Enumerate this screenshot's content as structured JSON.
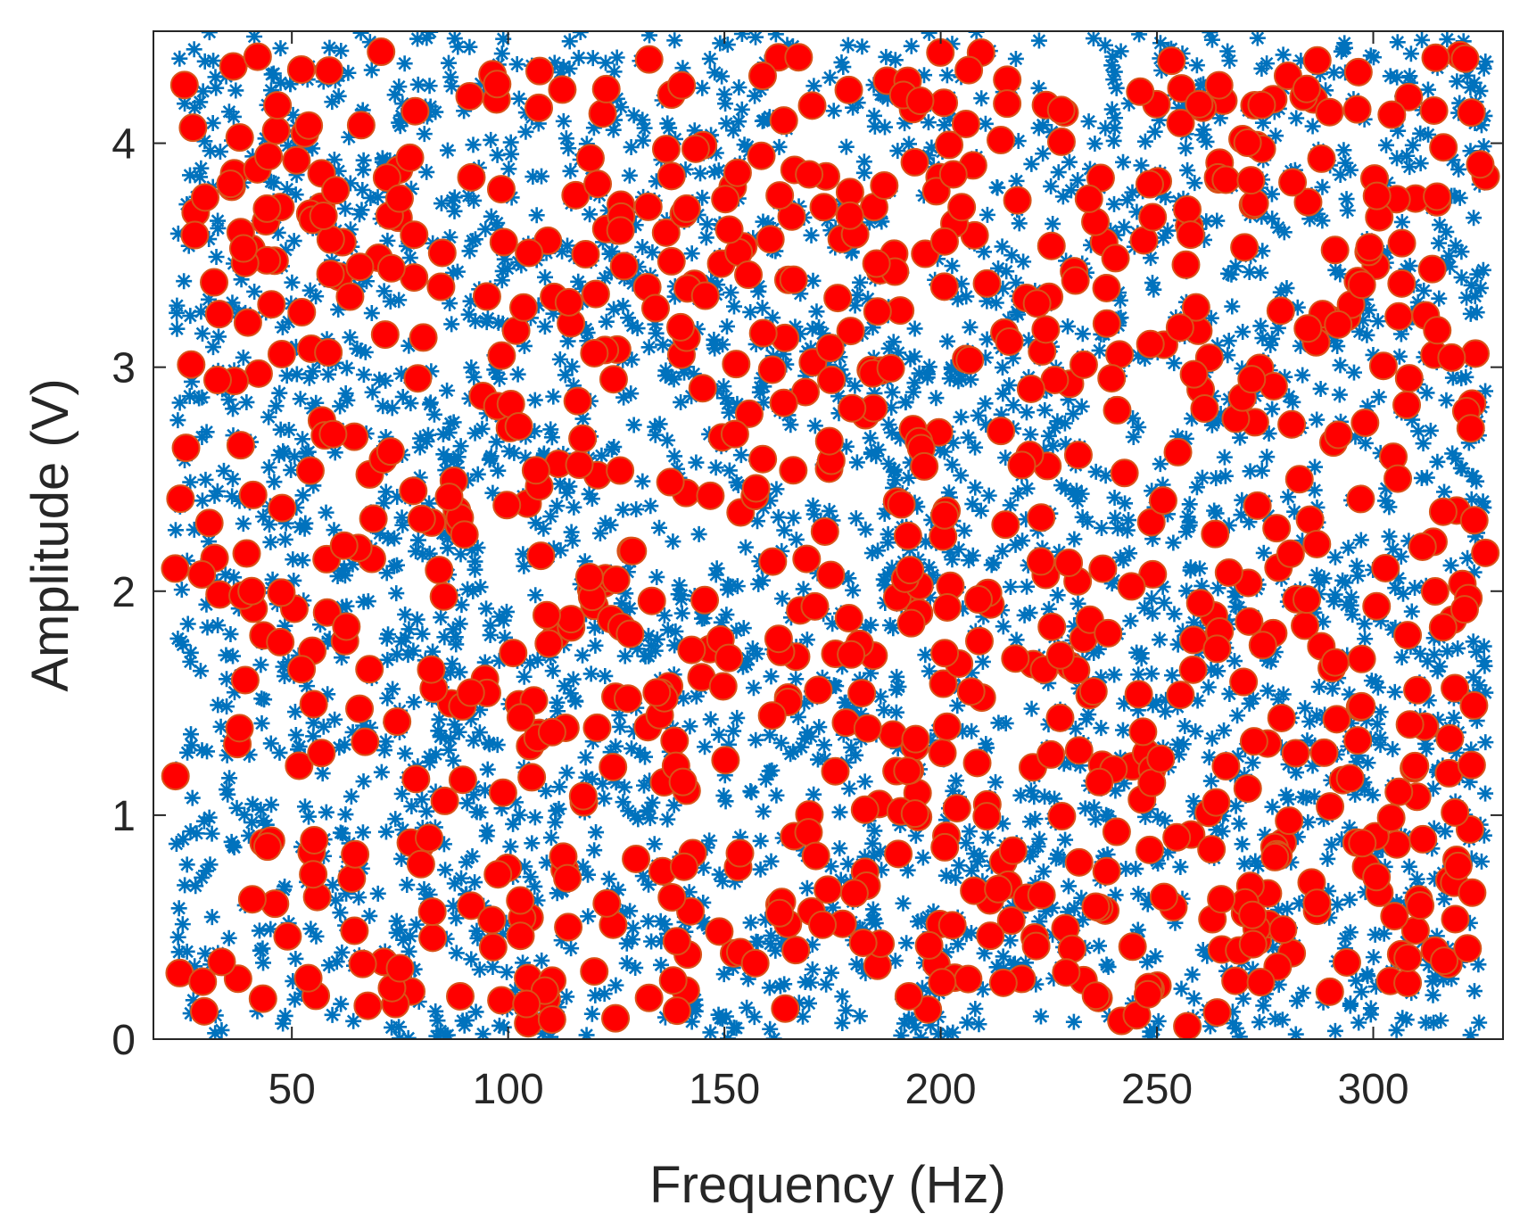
{
  "chart_data": {
    "type": "scatter",
    "title": "",
    "xlabel": "Frequency (Hz)",
    "ylabel": "Amplitude (V)",
    "xlim": [
      18,
      330
    ],
    "ylim": [
      0,
      4.5
    ],
    "xticks": [
      50,
      100,
      150,
      200,
      250,
      300
    ],
    "yticks": [
      0,
      1,
      2,
      3,
      4
    ],
    "grid": false,
    "box": true,
    "legend": null,
    "series": [
      {
        "marker": "asterisk",
        "color": "#0072BD",
        "count": 3000,
        "x_range": [
          23,
          326
        ],
        "y_range": [
          0,
          4.5
        ],
        "distribution": "uniform random (dense)"
      },
      {
        "marker": "circle",
        "color": "#FF0000",
        "edge_color": "#D95319",
        "count": 900,
        "x_range": [
          23,
          326
        ],
        "y_range": [
          0.05,
          4.42
        ],
        "distribution": "uniform random (dense)"
      }
    ]
  }
}
